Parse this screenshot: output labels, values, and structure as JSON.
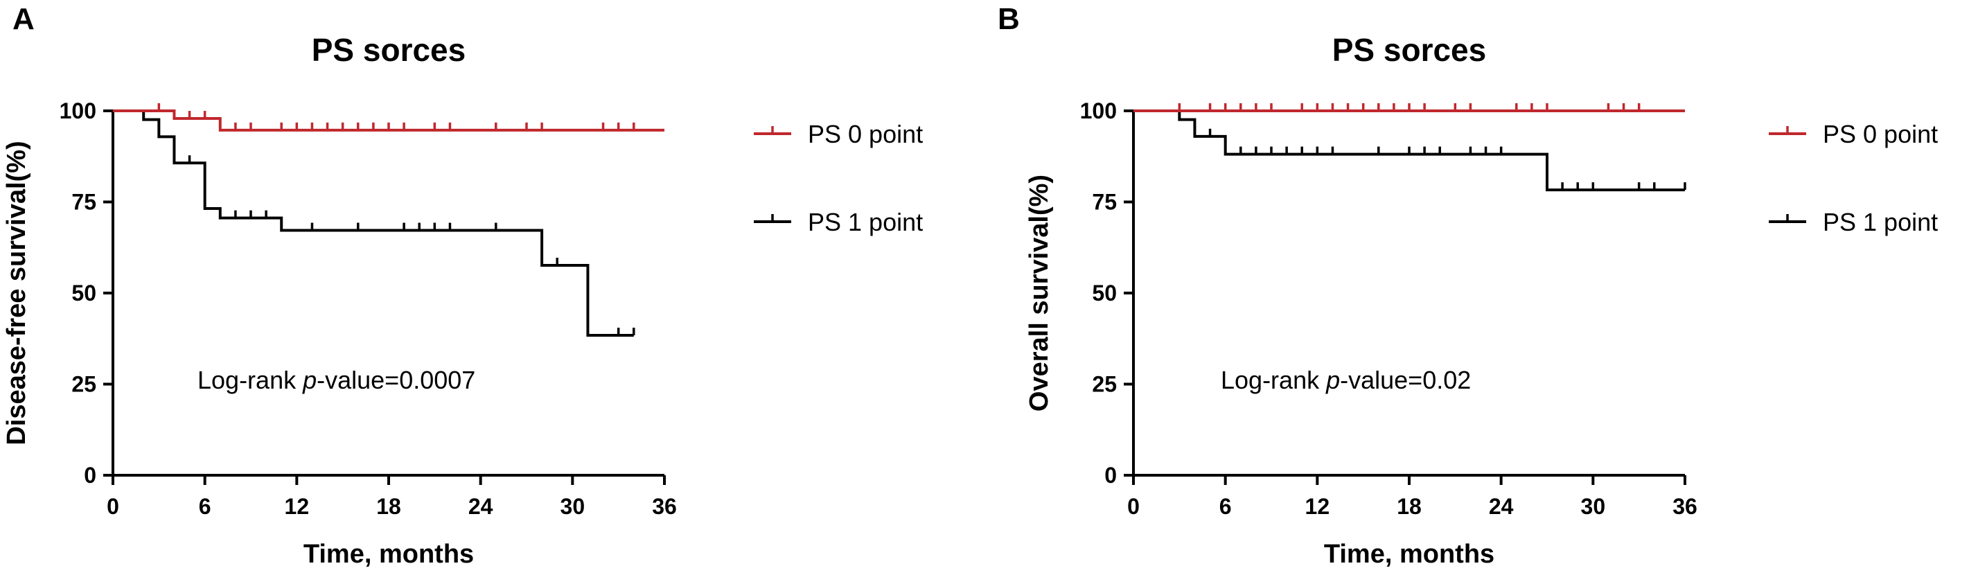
{
  "chart_data": [
    {
      "panel_label": "A",
      "type": "line",
      "subtype": "kaplan-meier step",
      "title": "PS sorces",
      "xlabel": "Time, months",
      "ylabel": "Disease-free survival(%)",
      "xlim": [
        0,
        36
      ],
      "ylim": [
        0,
        100
      ],
      "xticks": [
        "0",
        "6",
        "12",
        "18",
        "24",
        "30",
        "36"
      ],
      "yticks": [
        "0",
        "25",
        "50",
        "75",
        "100"
      ],
      "grid": false,
      "legend_position": "right",
      "annotation": {
        "prefix": "Log-rank ",
        "italic": "p",
        "suffix": "-value=0.0007"
      },
      "series": [
        {
          "name": "PS 0 point",
          "color": "#c0282d",
          "steps": [
            [
              0,
              100
            ],
            [
              4,
              97.9
            ],
            [
              7,
              94.7
            ],
            [
              36,
              94.7
            ]
          ],
          "censored": [
            [
              3,
              100
            ],
            [
              5,
              97.9
            ],
            [
              6,
              97.9
            ],
            [
              8,
              94.7
            ],
            [
              9,
              94.7
            ],
            [
              11,
              94.7
            ],
            [
              12,
              94.7
            ],
            [
              13,
              94.7
            ],
            [
              14,
              94.7
            ],
            [
              15,
              94.7
            ],
            [
              16,
              94.7
            ],
            [
              17,
              94.7
            ],
            [
              18,
              94.7
            ],
            [
              19,
              94.7
            ],
            [
              21,
              94.7
            ],
            [
              22,
              94.7
            ],
            [
              25,
              94.7
            ],
            [
              27,
              94.7
            ],
            [
              28,
              94.7
            ],
            [
              32,
              94.7
            ],
            [
              33,
              94.7
            ],
            [
              34,
              94.7
            ]
          ]
        },
        {
          "name": "PS 1 point",
          "color": "#000000",
          "steps": [
            [
              0,
              100
            ],
            [
              2,
              97.6
            ],
            [
              3,
              92.9
            ],
            [
              4,
              85.7
            ],
            [
              6,
              73.2
            ],
            [
              7,
              70.6
            ],
            [
              11,
              67.2
            ],
            [
              28,
              57.6
            ],
            [
              31,
              38.4
            ],
            [
              34,
              38.4
            ]
          ],
          "censored": [
            [
              5,
              85.7
            ],
            [
              8,
              70.6
            ],
            [
              9,
              70.6
            ],
            [
              10,
              70.6
            ],
            [
              13,
              67.2
            ],
            [
              16,
              67.2
            ],
            [
              19,
              67.2
            ],
            [
              20,
              67.2
            ],
            [
              21,
              67.2
            ],
            [
              22,
              67.2
            ],
            [
              25,
              67.2
            ],
            [
              29,
              57.6
            ],
            [
              33,
              38.4
            ],
            [
              34,
              38.4
            ]
          ]
        }
      ]
    },
    {
      "panel_label": "B",
      "type": "line",
      "subtype": "kaplan-meier step",
      "title": "PS sorces",
      "xlabel": "Time, months",
      "ylabel": "Overall survival(%)",
      "xlim": [
        0,
        36
      ],
      "ylim": [
        0,
        100
      ],
      "xticks": [
        "0",
        "6",
        "12",
        "18",
        "24",
        "30",
        "36"
      ],
      "yticks": [
        "0",
        "25",
        "50",
        "75",
        "100"
      ],
      "grid": false,
      "legend_position": "right",
      "annotation": {
        "prefix": "Log-rank ",
        "italic": "p",
        "suffix": "-value=0.02"
      },
      "series": [
        {
          "name": "PS 0 point",
          "color": "#c0282d",
          "steps": [
            [
              0,
              100
            ],
            [
              36,
              100
            ]
          ],
          "censored": [
            [
              3,
              100
            ],
            [
              5,
              100
            ],
            [
              6,
              100
            ],
            [
              7,
              100
            ],
            [
              8,
              100
            ],
            [
              9,
              100
            ],
            [
              11,
              100
            ],
            [
              12,
              100
            ],
            [
              13,
              100
            ],
            [
              14,
              100
            ],
            [
              15,
              100
            ],
            [
              16,
              100
            ],
            [
              17,
              100
            ],
            [
              18,
              100
            ],
            [
              19,
              100
            ],
            [
              21,
              100
            ],
            [
              22,
              100
            ],
            [
              25,
              100
            ],
            [
              26,
              100
            ],
            [
              27,
              100
            ],
            [
              31,
              100
            ],
            [
              32,
              100
            ],
            [
              33,
              100
            ]
          ]
        },
        {
          "name": "PS 1 point",
          "color": "#000000",
          "steps": [
            [
              0,
              100
            ],
            [
              3,
              97.6
            ],
            [
              4,
              93.0
            ],
            [
              6,
              88.1
            ],
            [
              27,
              78.3
            ],
            [
              36,
              78.3
            ]
          ],
          "censored": [
            [
              5,
              93.0
            ],
            [
              7,
              88.1
            ],
            [
              8,
              88.1
            ],
            [
              9,
              88.1
            ],
            [
              10,
              88.1
            ],
            [
              11,
              88.1
            ],
            [
              12,
              88.1
            ],
            [
              13,
              88.1
            ],
            [
              16,
              88.1
            ],
            [
              18,
              88.1
            ],
            [
              19,
              88.1
            ],
            [
              20,
              88.1
            ],
            [
              22,
              88.1
            ],
            [
              23,
              88.1
            ],
            [
              24,
              88.1
            ],
            [
              28,
              78.3
            ],
            [
              29,
              78.3
            ],
            [
              30,
              78.3
            ],
            [
              33,
              78.3
            ],
            [
              34,
              78.3
            ],
            [
              36,
              78.3
            ]
          ]
        }
      ]
    }
  ]
}
